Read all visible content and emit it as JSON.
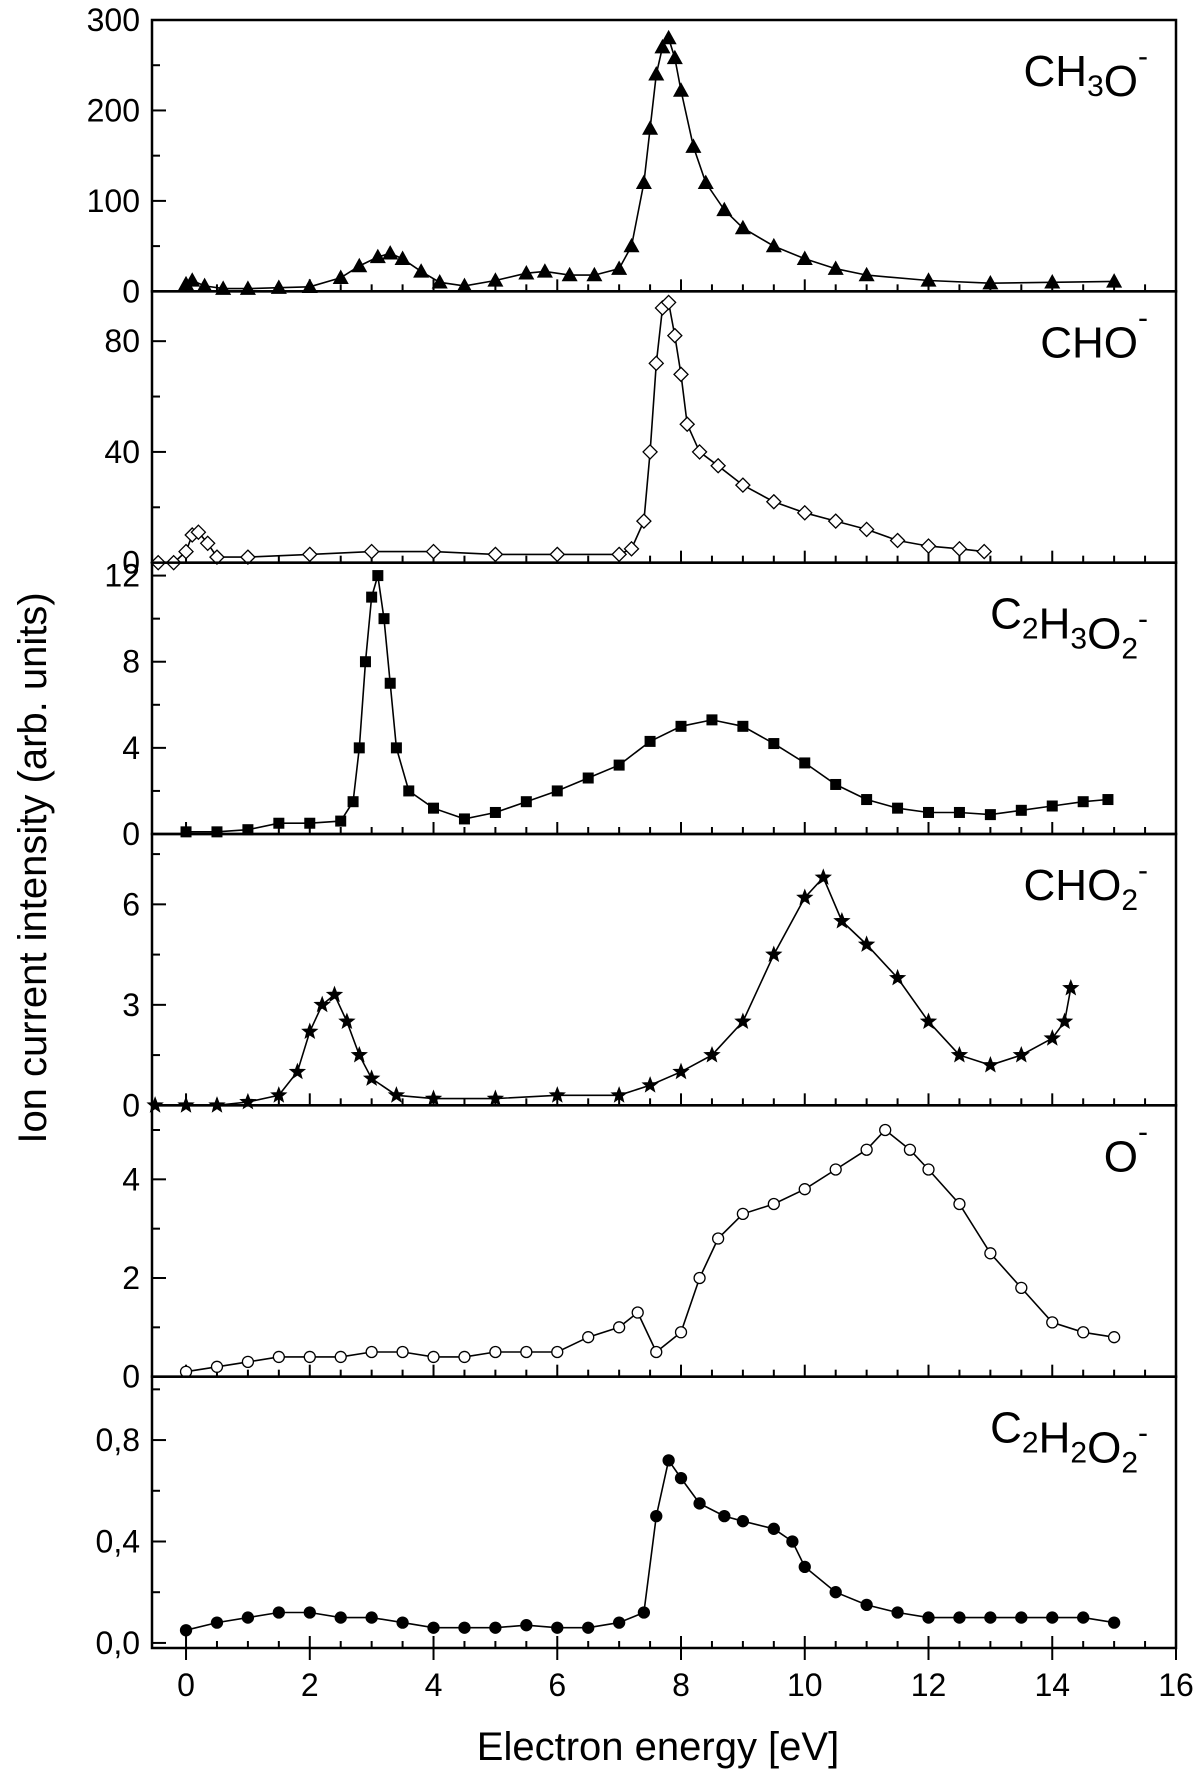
{
  "chart_data": {
    "type": "line",
    "title": "",
    "xlabel": "Electron energy [eV]",
    "ylabel": "Ion current intensity (arb. units)",
    "xlim": [
      -0.55,
      16
    ],
    "x_ticks": [
      0,
      2,
      4,
      6,
      8,
      10,
      12,
      14,
      16
    ],
    "x_tick_labels": [
      "0",
      "2",
      "4",
      "6",
      "8",
      "10",
      "12",
      "14",
      "16"
    ],
    "panels": [
      {
        "label": "CH3O-",
        "label_parts": [
          [
            "CH",
            ""
          ],
          [
            "3",
            "sub"
          ],
          [
            "O",
            ""
          ],
          [
            "-",
            "sup"
          ]
        ],
        "marker": "triangle-filled",
        "ylim": [
          0,
          300
        ],
        "y_ticks": [
          0,
          100,
          200,
          300
        ],
        "y_tick_labels": [
          "0",
          "100",
          "200",
          "300"
        ],
        "y_minor_step": 50,
        "series": [
          {
            "x": 0.0,
            "y": 8
          },
          {
            "x": 0.1,
            "y": 12
          },
          {
            "x": 0.3,
            "y": 6
          },
          {
            "x": 0.6,
            "y": 3
          },
          {
            "x": 1.0,
            "y": 3
          },
          {
            "x": 1.5,
            "y": 4
          },
          {
            "x": 2.0,
            "y": 5
          },
          {
            "x": 2.5,
            "y": 15
          },
          {
            "x": 2.8,
            "y": 28
          },
          {
            "x": 3.1,
            "y": 38
          },
          {
            "x": 3.3,
            "y": 42
          },
          {
            "x": 3.5,
            "y": 36
          },
          {
            "x": 3.8,
            "y": 22
          },
          {
            "x": 4.1,
            "y": 10
          },
          {
            "x": 4.5,
            "y": 6
          },
          {
            "x": 5.0,
            "y": 12
          },
          {
            "x": 5.5,
            "y": 20
          },
          {
            "x": 5.8,
            "y": 22
          },
          {
            "x": 6.2,
            "y": 18
          },
          {
            "x": 6.6,
            "y": 18
          },
          {
            "x": 7.0,
            "y": 25
          },
          {
            "x": 7.2,
            "y": 50
          },
          {
            "x": 7.4,
            "y": 120
          },
          {
            "x": 7.5,
            "y": 180
          },
          {
            "x": 7.6,
            "y": 240
          },
          {
            "x": 7.7,
            "y": 270
          },
          {
            "x": 7.8,
            "y": 280
          },
          {
            "x": 7.9,
            "y": 258
          },
          {
            "x": 8.0,
            "y": 222
          },
          {
            "x": 8.2,
            "y": 160
          },
          {
            "x": 8.4,
            "y": 120
          },
          {
            "x": 8.7,
            "y": 90
          },
          {
            "x": 9.0,
            "y": 70
          },
          {
            "x": 9.5,
            "y": 50
          },
          {
            "x": 10.0,
            "y": 36
          },
          {
            "x": 10.5,
            "y": 25
          },
          {
            "x": 11.0,
            "y": 18
          },
          {
            "x": 12.0,
            "y": 12
          },
          {
            "x": 13.0,
            "y": 9
          },
          {
            "x": 14.0,
            "y": 10
          },
          {
            "x": 15.0,
            "y": 11
          }
        ]
      },
      {
        "label": "CHO-",
        "label_parts": [
          [
            "CHO",
            ""
          ],
          [
            "-",
            "sup"
          ]
        ],
        "marker": "diamond-open",
        "ylim": [
          0,
          98
        ],
        "y_ticks": [
          0,
          40,
          80
        ],
        "y_tick_labels": [
          "0",
          "40",
          "80"
        ],
        "y_minor_step": 20,
        "series": [
          {
            "x": -0.45,
            "y": 0
          },
          {
            "x": -0.2,
            "y": 0
          },
          {
            "x": 0.0,
            "y": 4
          },
          {
            "x": 0.1,
            "y": 10
          },
          {
            "x": 0.2,
            "y": 11
          },
          {
            "x": 0.35,
            "y": 7
          },
          {
            "x": 0.5,
            "y": 2
          },
          {
            "x": 1.0,
            "y": 2
          },
          {
            "x": 2.0,
            "y": 3
          },
          {
            "x": 3.0,
            "y": 4
          },
          {
            "x": 4.0,
            "y": 4
          },
          {
            "x": 5.0,
            "y": 3
          },
          {
            "x": 6.0,
            "y": 3
          },
          {
            "x": 7.0,
            "y": 3
          },
          {
            "x": 7.2,
            "y": 5
          },
          {
            "x": 7.4,
            "y": 15
          },
          {
            "x": 7.5,
            "y": 40
          },
          {
            "x": 7.6,
            "y": 72
          },
          {
            "x": 7.7,
            "y": 92
          },
          {
            "x": 7.8,
            "y": 94
          },
          {
            "x": 7.9,
            "y": 82
          },
          {
            "x": 8.0,
            "y": 68
          },
          {
            "x": 8.1,
            "y": 50
          },
          {
            "x": 8.3,
            "y": 40
          },
          {
            "x": 8.6,
            "y": 35
          },
          {
            "x": 9.0,
            "y": 28
          },
          {
            "x": 9.5,
            "y": 22
          },
          {
            "x": 10.0,
            "y": 18
          },
          {
            "x": 10.5,
            "y": 15
          },
          {
            "x": 11.0,
            "y": 12
          },
          {
            "x": 11.5,
            "y": 8
          },
          {
            "x": 12.0,
            "y": 6
          },
          {
            "x": 12.5,
            "y": 5
          },
          {
            "x": 12.9,
            "y": 4
          }
        ]
      },
      {
        "label": "C2H3O2-",
        "label_parts": [
          [
            "C",
            ""
          ],
          [
            "2",
            "sub"
          ],
          [
            "H",
            ""
          ],
          [
            "3",
            "sub"
          ],
          [
            "O",
            ""
          ],
          [
            "2",
            "sub"
          ],
          [
            "-",
            "sup"
          ]
        ],
        "marker": "square-filled",
        "ylim": [
          0,
          12.6
        ],
        "y_ticks": [
          0,
          4,
          8,
          12
        ],
        "y_tick_labels": [
          "0",
          "4",
          "8",
          "12"
        ],
        "y_minor_step": 2,
        "series": [
          {
            "x": 0.0,
            "y": 0.1
          },
          {
            "x": 0.5,
            "y": 0.1
          },
          {
            "x": 1.0,
            "y": 0.2
          },
          {
            "x": 1.5,
            "y": 0.5
          },
          {
            "x": 2.0,
            "y": 0.5
          },
          {
            "x": 2.5,
            "y": 0.6
          },
          {
            "x": 2.7,
            "y": 1.5
          },
          {
            "x": 2.8,
            "y": 4.0
          },
          {
            "x": 2.9,
            "y": 8.0
          },
          {
            "x": 3.0,
            "y": 11.0
          },
          {
            "x": 3.1,
            "y": 12.0
          },
          {
            "x": 3.2,
            "y": 10.0
          },
          {
            "x": 3.3,
            "y": 7.0
          },
          {
            "x": 3.4,
            "y": 4.0
          },
          {
            "x": 3.6,
            "y": 2.0
          },
          {
            "x": 4.0,
            "y": 1.2
          },
          {
            "x": 4.5,
            "y": 0.7
          },
          {
            "x": 5.0,
            "y": 1.0
          },
          {
            "x": 5.5,
            "y": 1.5
          },
          {
            "x": 6.0,
            "y": 2.0
          },
          {
            "x": 6.5,
            "y": 2.6
          },
          {
            "x": 7.0,
            "y": 3.2
          },
          {
            "x": 7.5,
            "y": 4.3
          },
          {
            "x": 8.0,
            "y": 5.0
          },
          {
            "x": 8.5,
            "y": 5.3
          },
          {
            "x": 9.0,
            "y": 5.0
          },
          {
            "x": 9.5,
            "y": 4.2
          },
          {
            "x": 10.0,
            "y": 3.3
          },
          {
            "x": 10.5,
            "y": 2.3
          },
          {
            "x": 11.0,
            "y": 1.6
          },
          {
            "x": 11.5,
            "y": 1.2
          },
          {
            "x": 12.0,
            "y": 1.0
          },
          {
            "x": 12.5,
            "y": 1.0
          },
          {
            "x": 13.0,
            "y": 0.9
          },
          {
            "x": 13.5,
            "y": 1.1
          },
          {
            "x": 14.0,
            "y": 1.3
          },
          {
            "x": 14.5,
            "y": 1.5
          },
          {
            "x": 14.9,
            "y": 1.6
          }
        ]
      },
      {
        "label": "CHO2-",
        "label_parts": [
          [
            "CHO",
            ""
          ],
          [
            "2",
            "sub"
          ],
          [
            "-",
            "sup"
          ]
        ],
        "marker": "star-filled",
        "ylim": [
          0,
          8.1
        ],
        "y_ticks": [
          0,
          3,
          6
        ],
        "y_tick_labels": [
          "0",
          "3",
          "6"
        ],
        "y_minor_step": 1.5,
        "series": [
          {
            "x": -0.5,
            "y": 0
          },
          {
            "x": 0.0,
            "y": 0
          },
          {
            "x": 0.5,
            "y": 0
          },
          {
            "x": 1.0,
            "y": 0.1
          },
          {
            "x": 1.5,
            "y": 0.3
          },
          {
            "x": 1.8,
            "y": 1.0
          },
          {
            "x": 2.0,
            "y": 2.2
          },
          {
            "x": 2.2,
            "y": 3.0
          },
          {
            "x": 2.4,
            "y": 3.3
          },
          {
            "x": 2.6,
            "y": 2.5
          },
          {
            "x": 2.8,
            "y": 1.5
          },
          {
            "x": 3.0,
            "y": 0.8
          },
          {
            "x": 3.4,
            "y": 0.3
          },
          {
            "x": 4.0,
            "y": 0.2
          },
          {
            "x": 5.0,
            "y": 0.2
          },
          {
            "x": 6.0,
            "y": 0.3
          },
          {
            "x": 7.0,
            "y": 0.3
          },
          {
            "x": 7.5,
            "y": 0.6
          },
          {
            "x": 8.0,
            "y": 1.0
          },
          {
            "x": 8.5,
            "y": 1.5
          },
          {
            "x": 9.0,
            "y": 2.5
          },
          {
            "x": 9.5,
            "y": 4.5
          },
          {
            "x": 10.0,
            "y": 6.2
          },
          {
            "x": 10.3,
            "y": 6.8
          },
          {
            "x": 10.6,
            "y": 5.5
          },
          {
            "x": 11.0,
            "y": 4.8
          },
          {
            "x": 11.5,
            "y": 3.8
          },
          {
            "x": 12.0,
            "y": 2.5
          },
          {
            "x": 12.5,
            "y": 1.5
          },
          {
            "x": 13.0,
            "y": 1.2
          },
          {
            "x": 13.5,
            "y": 1.5
          },
          {
            "x": 14.0,
            "y": 2.0
          },
          {
            "x": 14.2,
            "y": 2.5
          },
          {
            "x": 14.3,
            "y": 3.5
          }
        ]
      },
      {
        "label": "O-",
        "label_parts": [
          [
            "O",
            ""
          ],
          [
            "-",
            "sup"
          ]
        ],
        "marker": "circle-open",
        "ylim": [
          0,
          5.5
        ],
        "y_ticks": [
          0,
          2,
          4
        ],
        "y_tick_labels": [
          "0",
          "2",
          "4"
        ],
        "y_minor_step": 1,
        "series": [
          {
            "x": 0.0,
            "y": 0.1
          },
          {
            "x": 0.5,
            "y": 0.2
          },
          {
            "x": 1.0,
            "y": 0.3
          },
          {
            "x": 1.5,
            "y": 0.4
          },
          {
            "x": 2.0,
            "y": 0.4
          },
          {
            "x": 2.5,
            "y": 0.4
          },
          {
            "x": 3.0,
            "y": 0.5
          },
          {
            "x": 3.5,
            "y": 0.5
          },
          {
            "x": 4.0,
            "y": 0.4
          },
          {
            "x": 4.5,
            "y": 0.4
          },
          {
            "x": 5.0,
            "y": 0.5
          },
          {
            "x": 5.5,
            "y": 0.5
          },
          {
            "x": 6.0,
            "y": 0.5
          },
          {
            "x": 6.5,
            "y": 0.8
          },
          {
            "x": 7.0,
            "y": 1.0
          },
          {
            "x": 7.3,
            "y": 1.3
          },
          {
            "x": 7.6,
            "y": 0.5
          },
          {
            "x": 8.0,
            "y": 0.9
          },
          {
            "x": 8.3,
            "y": 2.0
          },
          {
            "x": 8.6,
            "y": 2.8
          },
          {
            "x": 9.0,
            "y": 3.3
          },
          {
            "x": 9.5,
            "y": 3.5
          },
          {
            "x": 10.0,
            "y": 3.8
          },
          {
            "x": 10.5,
            "y": 4.2
          },
          {
            "x": 11.0,
            "y": 4.6
          },
          {
            "x": 11.3,
            "y": 5.0
          },
          {
            "x": 11.7,
            "y": 4.6
          },
          {
            "x": 12.0,
            "y": 4.2
          },
          {
            "x": 12.5,
            "y": 3.5
          },
          {
            "x": 13.0,
            "y": 2.5
          },
          {
            "x": 13.5,
            "y": 1.8
          },
          {
            "x": 14.0,
            "y": 1.1
          },
          {
            "x": 14.5,
            "y": 0.9
          },
          {
            "x": 15.0,
            "y": 0.8
          }
        ]
      },
      {
        "label": "C2H2O2-",
        "label_parts": [
          [
            "C",
            ""
          ],
          [
            "2",
            "sub"
          ],
          [
            "H",
            ""
          ],
          [
            "2",
            "sub"
          ],
          [
            "O",
            ""
          ],
          [
            "2",
            "sub"
          ],
          [
            "-",
            "sup"
          ]
        ],
        "marker": "circle-filled",
        "ylim": [
          -0.02,
          1.05
        ],
        "y_ticks": [
          0.0,
          0.4,
          0.8
        ],
        "y_tick_labels": [
          "0,0",
          "0,4",
          "0,8"
        ],
        "y_minor_step": 0.2,
        "series": [
          {
            "x": 0.0,
            "y": 0.05
          },
          {
            "x": 0.5,
            "y": 0.08
          },
          {
            "x": 1.0,
            "y": 0.1
          },
          {
            "x": 1.5,
            "y": 0.12
          },
          {
            "x": 2.0,
            "y": 0.12
          },
          {
            "x": 2.5,
            "y": 0.1
          },
          {
            "x": 3.0,
            "y": 0.1
          },
          {
            "x": 3.5,
            "y": 0.08
          },
          {
            "x": 4.0,
            "y": 0.06
          },
          {
            "x": 4.5,
            "y": 0.06
          },
          {
            "x": 5.0,
            "y": 0.06
          },
          {
            "x": 5.5,
            "y": 0.07
          },
          {
            "x": 6.0,
            "y": 0.06
          },
          {
            "x": 6.5,
            "y": 0.06
          },
          {
            "x": 7.0,
            "y": 0.08
          },
          {
            "x": 7.4,
            "y": 0.12
          },
          {
            "x": 7.6,
            "y": 0.5
          },
          {
            "x": 7.8,
            "y": 0.72
          },
          {
            "x": 8.0,
            "y": 0.65
          },
          {
            "x": 8.3,
            "y": 0.55
          },
          {
            "x": 8.7,
            "y": 0.5
          },
          {
            "x": 9.0,
            "y": 0.48
          },
          {
            "x": 9.5,
            "y": 0.45
          },
          {
            "x": 9.8,
            "y": 0.4
          },
          {
            "x": 10.0,
            "y": 0.3
          },
          {
            "x": 10.5,
            "y": 0.2
          },
          {
            "x": 11.0,
            "y": 0.15
          },
          {
            "x": 11.5,
            "y": 0.12
          },
          {
            "x": 12.0,
            "y": 0.1
          },
          {
            "x": 12.5,
            "y": 0.1
          },
          {
            "x": 13.0,
            "y": 0.1
          },
          {
            "x": 13.5,
            "y": 0.1
          },
          {
            "x": 14.0,
            "y": 0.1
          },
          {
            "x": 14.5,
            "y": 0.1
          },
          {
            "x": 15.0,
            "y": 0.08
          }
        ]
      }
    ]
  }
}
